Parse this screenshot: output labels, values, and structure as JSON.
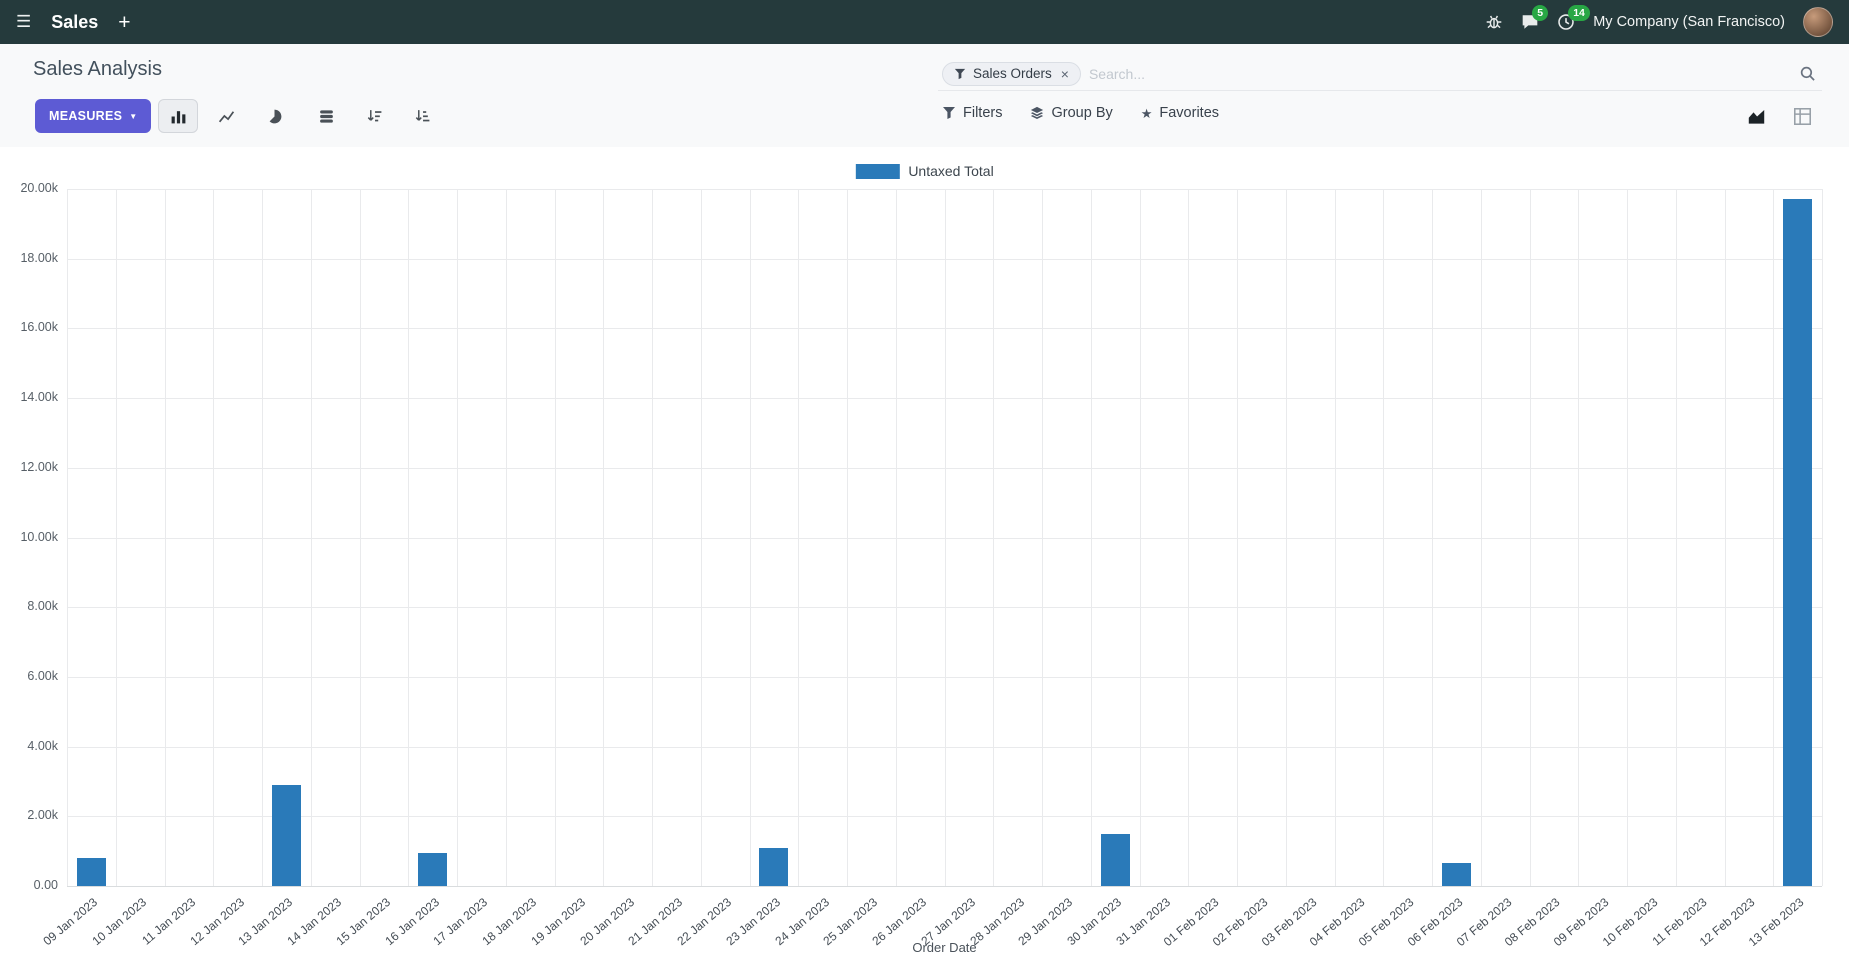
{
  "navbar": {
    "app_name": "Sales",
    "company_name": "My Company (San Francisco)",
    "messages_badge": "5",
    "activities_badge": "14"
  },
  "icons": {
    "hamburger": "☰",
    "plus": "+",
    "close": "×",
    "caret_down": "▼",
    "star": "★"
  },
  "control_panel": {
    "title": "Sales Analysis",
    "measures_button": "MEASURES",
    "search": {
      "facet_label": "Sales Orders",
      "placeholder": "Search..."
    },
    "filters_label": "Filters",
    "group_by_label": "Group By",
    "favorites_label": "Favorites"
  },
  "colors": {
    "navbar_bg": "#253a3c",
    "primary_button": "#5d5bd4",
    "bar_series": "#2a7ab9",
    "badge": "#28a745"
  },
  "chart_data": {
    "type": "bar",
    "title": "",
    "xlabel": "Order Date",
    "ylabel": "",
    "legend_position": "top",
    "grid": true,
    "ylim": [
      0,
      20000
    ],
    "y_tick_labels": [
      "0.00",
      "2.00k",
      "4.00k",
      "6.00k",
      "8.00k",
      "10.00k",
      "12.00k",
      "14.00k",
      "16.00k",
      "18.00k",
      "20.00k"
    ],
    "categories": [
      "09 Jan 2023",
      "10 Jan 2023",
      "11 Jan 2023",
      "12 Jan 2023",
      "13 Jan 2023",
      "14 Jan 2023",
      "15 Jan 2023",
      "16 Jan 2023",
      "17 Jan 2023",
      "18 Jan 2023",
      "19 Jan 2023",
      "20 Jan 2023",
      "21 Jan 2023",
      "22 Jan 2023",
      "23 Jan 2023",
      "24 Jan 2023",
      "25 Jan 2023",
      "26 Jan 2023",
      "27 Jan 2023",
      "28 Jan 2023",
      "29 Jan 2023",
      "30 Jan 2023",
      "31 Jan 2023",
      "01 Feb 2023",
      "02 Feb 2023",
      "03 Feb 2023",
      "04 Feb 2023",
      "05 Feb 2023",
      "06 Feb 2023",
      "07 Feb 2023",
      "08 Feb 2023",
      "09 Feb 2023",
      "10 Feb 2023",
      "11 Feb 2023",
      "12 Feb 2023",
      "13 Feb 2023"
    ],
    "series": [
      {
        "name": "Untaxed Total",
        "color": "#2a7ab9",
        "values": [
          800,
          0,
          0,
          0,
          2900,
          0,
          0,
          950,
          0,
          0,
          0,
          0,
          0,
          0,
          1100,
          0,
          0,
          0,
          0,
          0,
          0,
          1500,
          0,
          0,
          0,
          0,
          0,
          0,
          650,
          0,
          0,
          0,
          0,
          0,
          0,
          19700
        ]
      }
    ]
  }
}
